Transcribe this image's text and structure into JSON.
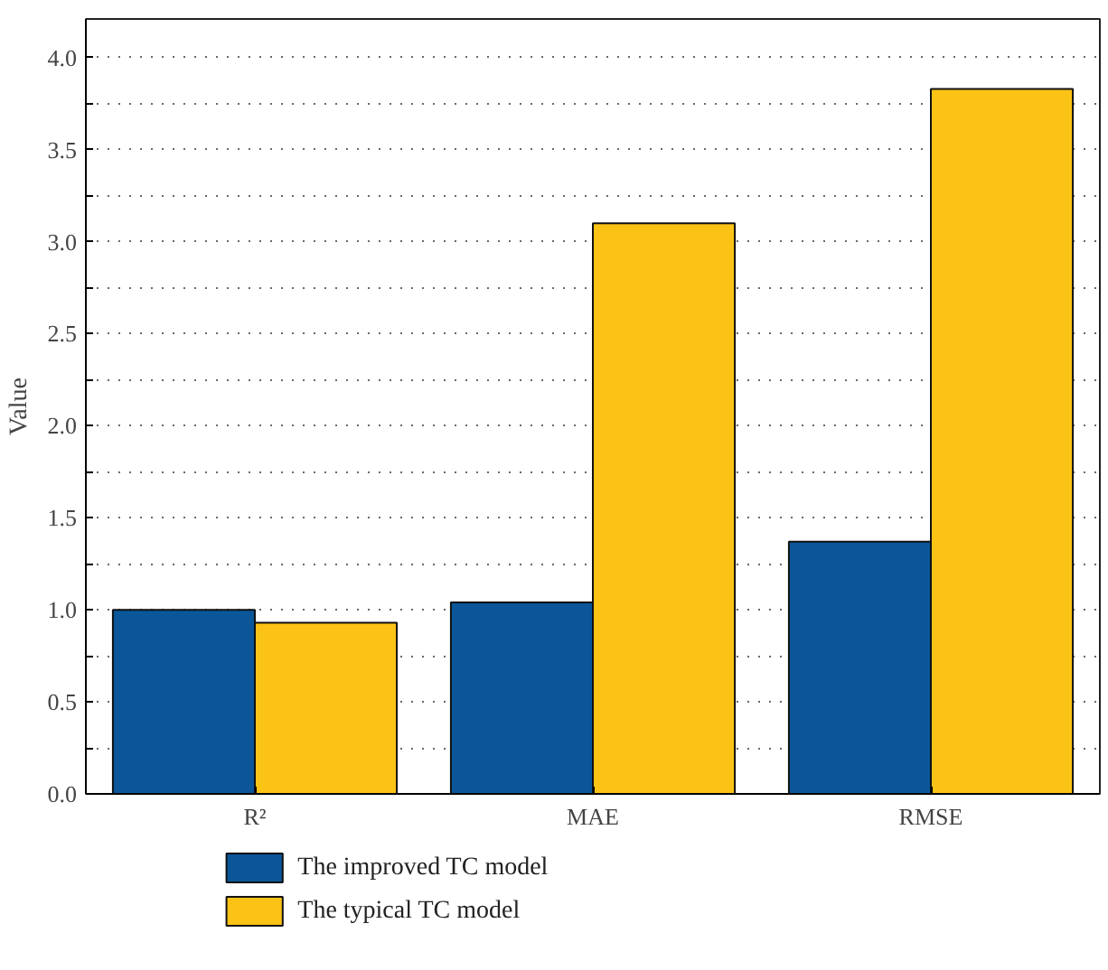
{
  "chart_data": {
    "type": "bar",
    "ylabel": "Value",
    "categories": [
      "R²",
      "MAE",
      "RMSE"
    ],
    "series": [
      {
        "name": "The improved TC model",
        "color": "#0a5699",
        "values": [
          1.0,
          1.04,
          1.37
        ]
      },
      {
        "name": "The typical TC model",
        "color": "#fcc317",
        "values": [
          0.93,
          3.1,
          3.83
        ]
      }
    ],
    "ylim": [
      0,
      4.21
    ],
    "yticks": [
      {
        "value": 0,
        "label": "0.0"
      },
      {
        "value": 0.25,
        "label": null
      },
      0.5,
      {
        "value": 0.75,
        "label": null
      },
      {
        "value": 1,
        "label": "1.0"
      },
      {
        "value": 1.25,
        "label": null
      },
      1.5,
      {
        "value": 1.75,
        "label": null
      },
      {
        "value": 2,
        "label": "2.0"
      },
      {
        "value": 2.25,
        "label": null
      },
      2.5,
      {
        "value": 2.75,
        "label": null
      },
      {
        "value": 3,
        "label": "3.0"
      },
      {
        "value": 3.25,
        "label": null
      },
      3.5,
      {
        "value": 3.75,
        "label": null
      },
      {
        "value": 4,
        "label": "4.0"
      }
    ],
    "grid": "y",
    "legend": "bottom"
  }
}
